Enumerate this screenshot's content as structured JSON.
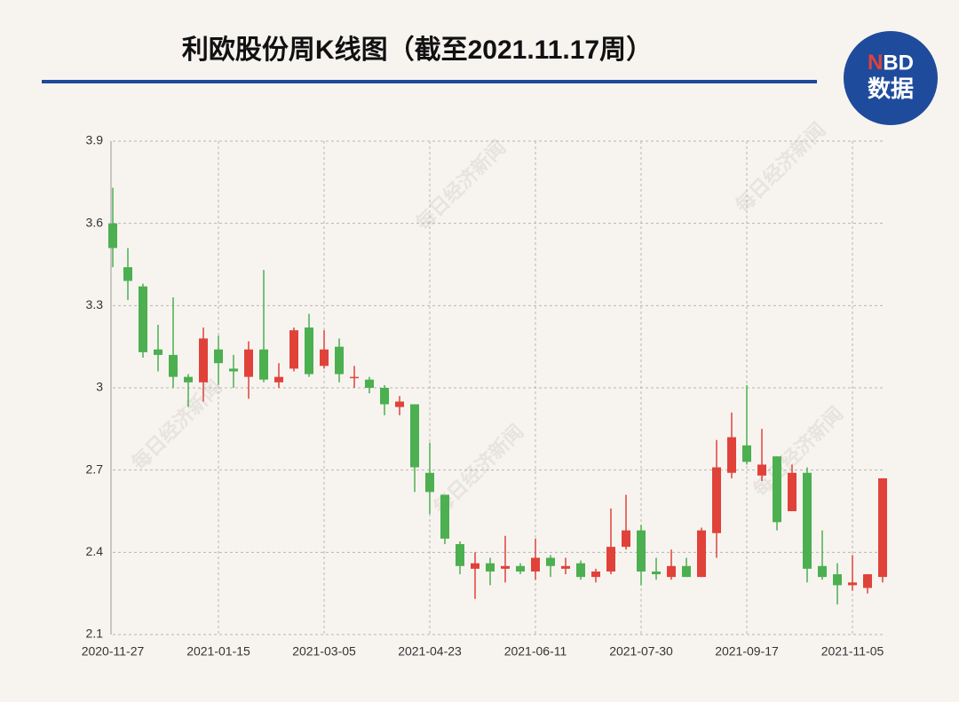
{
  "logo": {
    "top": "NBD",
    "bottom": "数据"
  },
  "watermark": "每日经济新闻",
  "chart_data": {
    "type": "candlestick",
    "title": "利欧股份周K线图（截至2021.11.17周）",
    "categories": [
      "2020-11-27",
      null,
      null,
      null,
      null,
      null,
      null,
      "2021-01-15",
      null,
      null,
      null,
      null,
      null,
      null,
      "2021-03-05",
      null,
      null,
      null,
      null,
      null,
      null,
      "2021-04-23",
      null,
      null,
      null,
      null,
      null,
      null,
      "2021-06-11",
      null,
      null,
      null,
      null,
      null,
      null,
      "2021-07-30",
      null,
      null,
      null,
      null,
      null,
      null,
      "2021-09-17",
      null,
      null,
      null,
      null,
      null,
      null,
      "2021-11-05",
      null,
      null
    ],
    "open": [
      3.6,
      3.44,
      3.37,
      3.14,
      3.12,
      3.04,
      3.02,
      3.14,
      3.07,
      3.04,
      3.14,
      3.02,
      3.07,
      3.22,
      3.08,
      3.15,
      3.04,
      3.03,
      3.0,
      2.93,
      2.94,
      2.69,
      2.61,
      2.43,
      2.34,
      2.36,
      2.34,
      2.35,
      2.33,
      2.38,
      2.34,
      2.36,
      2.31,
      2.33,
      2.42,
      2.48,
      2.33,
      2.31,
      2.35,
      2.31,
      2.47,
      2.69,
      2.79,
      2.68,
      2.75,
      2.55,
      2.69,
      2.35,
      2.32,
      2.28,
      2.27,
      2.31
    ],
    "high": [
      3.73,
      3.51,
      3.38,
      3.23,
      3.33,
      3.05,
      3.22,
      3.19,
      3.12,
      3.17,
      3.43,
      3.09,
      3.22,
      3.27,
      3.21,
      3.18,
      3.08,
      3.04,
      3.01,
      2.97,
      2.94,
      2.8,
      2.61,
      2.44,
      2.4,
      2.38,
      2.46,
      2.36,
      2.45,
      2.39,
      2.38,
      2.37,
      2.34,
      2.56,
      2.61,
      2.5,
      2.38,
      2.41,
      2.38,
      2.49,
      2.81,
      2.91,
      3.01,
      2.85,
      2.75,
      2.72,
      2.71,
      2.48,
      2.36,
      2.39,
      2.32,
      2.67
    ],
    "low": [
      3.44,
      3.32,
      3.11,
      3.06,
      3.0,
      2.93,
      2.95,
      3.01,
      3.0,
      2.96,
      3.02,
      3.0,
      3.06,
      3.04,
      3.07,
      3.02,
      3.0,
      2.98,
      2.9,
      2.9,
      2.62,
      2.54,
      2.43,
      2.32,
      2.23,
      2.28,
      2.29,
      2.32,
      2.3,
      2.31,
      2.32,
      2.3,
      2.29,
      2.32,
      2.41,
      2.28,
      2.3,
      2.3,
      2.31,
      2.31,
      2.38,
      2.67,
      2.72,
      2.66,
      2.48,
      2.55,
      2.29,
      2.3,
      2.21,
      2.26,
      2.25,
      2.29
    ],
    "close": [
      3.51,
      3.39,
      3.13,
      3.12,
      3.04,
      3.02,
      3.18,
      3.09,
      3.06,
      3.14,
      3.03,
      3.04,
      3.21,
      3.05,
      3.14,
      3.05,
      3.04,
      3.0,
      2.94,
      2.95,
      2.71,
      2.62,
      2.45,
      2.35,
      2.36,
      2.33,
      2.35,
      2.33,
      2.38,
      2.35,
      2.35,
      2.31,
      2.33,
      2.42,
      2.48,
      2.33,
      2.32,
      2.35,
      2.31,
      2.48,
      2.71,
      2.82,
      2.73,
      2.72,
      2.51,
      2.69,
      2.34,
      2.31,
      2.28,
      2.29,
      2.32,
      2.67
    ],
    "up_color": "#e0423a",
    "down_color": "#4caf50",
    "ylim": [
      2.1,
      3.9
    ],
    "yticks": [
      2.1,
      2.4,
      2.7,
      3,
      3.3,
      3.6,
      3.9
    ],
    "grid": true
  }
}
